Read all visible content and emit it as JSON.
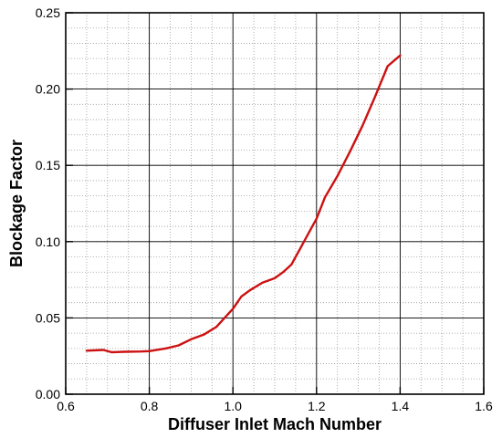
{
  "chart_data": {
    "type": "line",
    "title": "",
    "xlabel": "Diffuser Inlet Mach Number",
    "ylabel": "Blockage Factor",
    "xlim": [
      0.6,
      1.6
    ],
    "ylim": [
      0.0,
      0.25
    ],
    "x_ticks": [
      "0.6",
      "0.8",
      "1.0",
      "1.2",
      "1.4",
      "1.6"
    ],
    "y_ticks": [
      "0.00",
      "0.05",
      "0.10",
      "0.15",
      "0.20",
      "0.25"
    ],
    "grid": true,
    "minor_grid": true,
    "line_color": "#cc1111",
    "series": [
      {
        "x": [
          0.65,
          0.69,
          0.71,
          0.74,
          0.78,
          0.8,
          0.84,
          0.87,
          0.9,
          0.93,
          0.96,
          0.98,
          1.0,
          1.02,
          1.04,
          1.07,
          1.1,
          1.12,
          1.14,
          1.16,
          1.18,
          1.2,
          1.22,
          1.25,
          1.28,
          1.31,
          1.34,
          1.37,
          1.4
        ],
        "y": [
          0.0285,
          0.029,
          0.0275,
          0.0278,
          0.028,
          0.0282,
          0.03,
          0.032,
          0.036,
          0.039,
          0.044,
          0.05,
          0.056,
          0.064,
          0.068,
          0.073,
          0.076,
          0.08,
          0.085,
          0.095,
          0.105,
          0.115,
          0.129,
          0.143,
          0.159,
          0.176,
          0.195,
          0.215,
          0.222
        ]
      }
    ]
  }
}
